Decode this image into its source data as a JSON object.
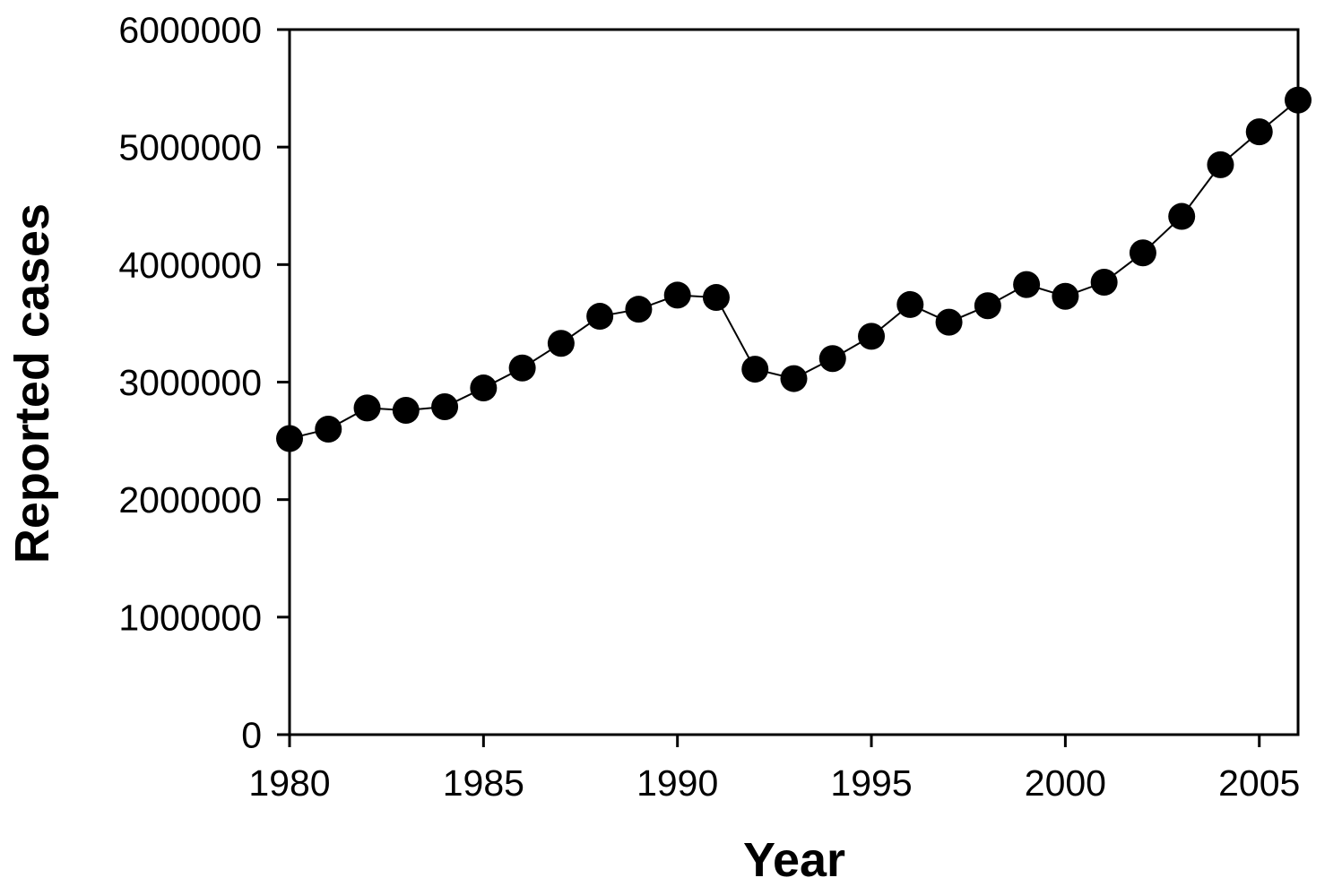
{
  "chart_data": {
    "type": "line",
    "title": "",
    "xlabel": "Year",
    "ylabel": "Reported cases",
    "legend_position": "none",
    "grid": false,
    "marker": "filled-circle",
    "xlim": [
      1980,
      2006
    ],
    "ylim": [
      0,
      6000000
    ],
    "x_ticks": [
      1980,
      1985,
      1990,
      1995,
      2000,
      2005
    ],
    "y_ticks": [
      0,
      1000000,
      2000000,
      3000000,
      4000000,
      5000000,
      6000000
    ],
    "x": [
      1980,
      1981,
      1982,
      1983,
      1984,
      1985,
      1986,
      1987,
      1988,
      1989,
      1990,
      1991,
      1992,
      1993,
      1994,
      1995,
      1996,
      1997,
      1998,
      1999,
      2000,
      2001,
      2002,
      2003,
      2004,
      2005,
      2006
    ],
    "series": [
      {
        "name": "Reported cases",
        "values": [
          2520000,
          2600000,
          2780000,
          2760000,
          2790000,
          2950000,
          3120000,
          3330000,
          3560000,
          3620000,
          3740000,
          3720000,
          3110000,
          3030000,
          3200000,
          3390000,
          3660000,
          3510000,
          3650000,
          3830000,
          3730000,
          3850000,
          4100000,
          4410000,
          4850000,
          5130000,
          5400000
        ]
      }
    ],
    "colors": {
      "line": "#000000",
      "marker": "#000000",
      "frame": "#000000",
      "text": "#000000",
      "background": "#ffffff"
    }
  }
}
